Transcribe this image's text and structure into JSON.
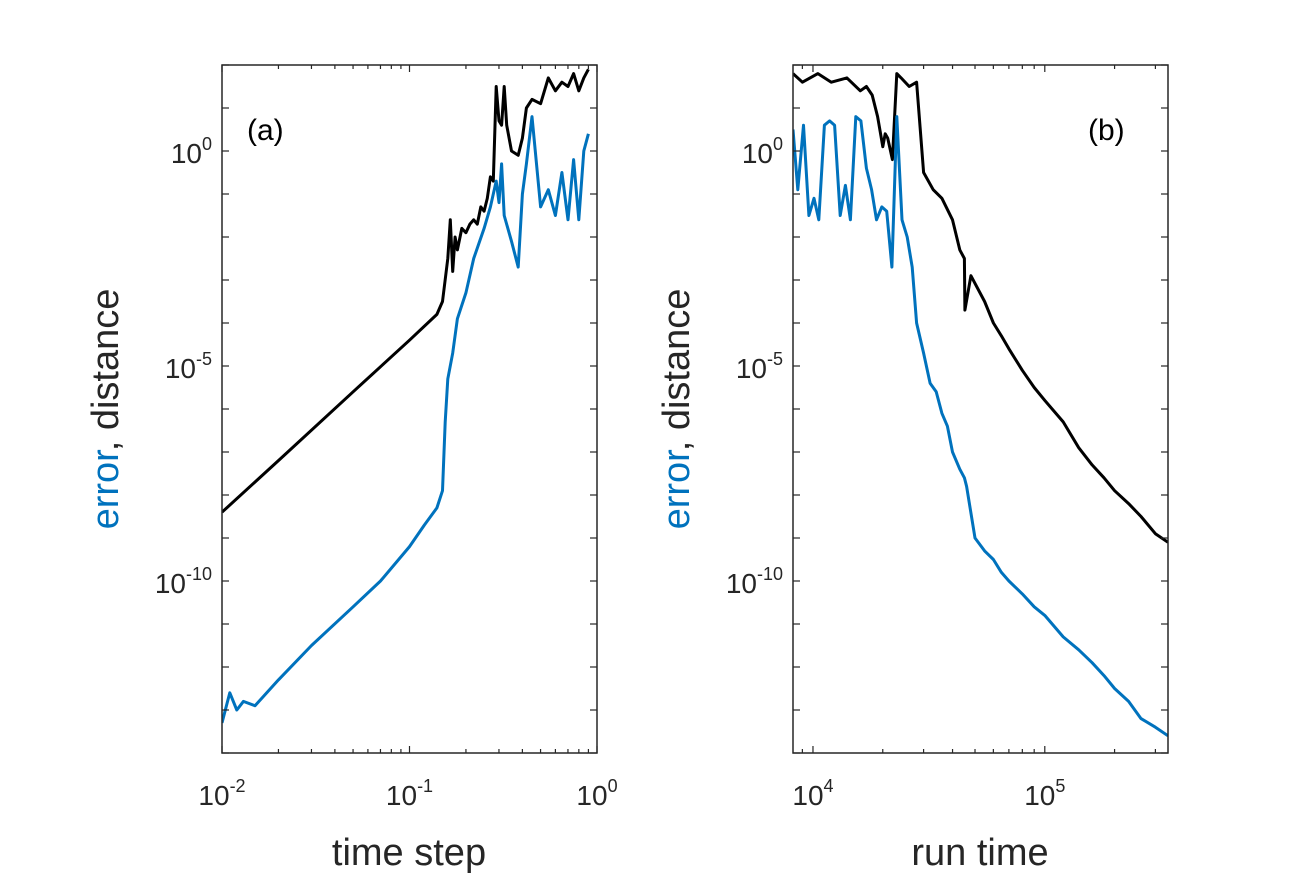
{
  "colors": {
    "error": "#0072BD",
    "distance": "#000000",
    "axis": "#262626",
    "background": "#ffffff"
  },
  "chart_data": [
    {
      "type": "line",
      "panel": "(a)",
      "xscale": "log",
      "yscale": "log",
      "xlim": [
        0.01,
        1
      ],
      "ylim_exp": [
        -14,
        2
      ],
      "xlabel": "time step",
      "ylabel_error": "error",
      "ylabel_sep": ",",
      "ylabel_distance": "distance",
      "x_ticks": [
        {
          "base": "10",
          "exp": "-2",
          "value": 0.01
        },
        {
          "base": "10",
          "exp": "-1",
          "value": 0.1
        },
        {
          "base": "10",
          "exp": "0",
          "value": 1
        }
      ],
      "y_ticks": [
        {
          "base": "10",
          "exp": "-10",
          "value_exp": -10
        },
        {
          "base": "10",
          "exp": "-5",
          "value_exp": -5
        },
        {
          "base": "10",
          "exp": "0",
          "value_exp": 0
        }
      ],
      "series": [
        {
          "name": "distance",
          "color": "#000000",
          "x": [
            0.01,
            0.02,
            0.05,
            0.1,
            0.14,
            0.15,
            0.16,
            0.165,
            0.17,
            0.175,
            0.18,
            0.19,
            0.2,
            0.21,
            0.22,
            0.23,
            0.24,
            0.25,
            0.26,
            0.27,
            0.28,
            0.29,
            0.3,
            0.31,
            0.32,
            0.33,
            0.35,
            0.38,
            0.4,
            0.42,
            0.45,
            0.5,
            0.55,
            0.6,
            0.65,
            0.7,
            0.75,
            0.8,
            0.85,
            0.9
          ],
          "log10_y": [
            -8.4,
            -7.2,
            -5.6,
            -4.4,
            -3.8,
            -3.5,
            -2.5,
            -1.6,
            -2.8,
            -2.0,
            -2.3,
            -1.8,
            -1.9,
            -1.7,
            -1.6,
            -1.7,
            -1.3,
            -1.4,
            -1.1,
            -0.6,
            -0.7,
            1.5,
            0.7,
            0.6,
            1.5,
            0.6,
            0.0,
            -0.1,
            0.3,
            1.0,
            1.2,
            1.1,
            1.7,
            1.4,
            1.6,
            1.5,
            1.8,
            1.4,
            1.7,
            1.9
          ]
        },
        {
          "name": "error",
          "color": "#0072BD",
          "x": [
            0.01,
            0.011,
            0.012,
            0.013,
            0.015,
            0.02,
            0.03,
            0.05,
            0.07,
            0.1,
            0.12,
            0.14,
            0.15,
            0.155,
            0.16,
            0.17,
            0.18,
            0.2,
            0.22,
            0.25,
            0.27,
            0.29,
            0.3,
            0.31,
            0.32,
            0.35,
            0.38,
            0.4,
            0.42,
            0.45,
            0.5,
            0.55,
            0.6,
            0.65,
            0.7,
            0.75,
            0.8,
            0.85,
            0.9
          ],
          "log10_y": [
            -13.3,
            -12.6,
            -13.0,
            -12.8,
            -12.9,
            -12.3,
            -11.5,
            -10.6,
            -10.0,
            -9.2,
            -8.7,
            -8.3,
            -7.9,
            -6.3,
            -5.3,
            -4.7,
            -3.9,
            -3.3,
            -2.5,
            -1.8,
            -1.3,
            -0.7,
            -1.2,
            -0.3,
            -1.5,
            -2.1,
            -2.7,
            -1.0,
            -0.3,
            0.8,
            -1.3,
            -0.9,
            -1.5,
            -0.5,
            -1.6,
            -0.2,
            -1.6,
            0.0,
            0.4
          ]
        }
      ]
    },
    {
      "type": "line",
      "panel": "(b)",
      "xscale": "log",
      "yscale": "log",
      "xlim": [
        8200,
        340000
      ],
      "ylim_exp": [
        -14,
        2
      ],
      "xlabel": "run time",
      "ylabel_error": "error",
      "ylabel_sep": ",",
      "ylabel_distance": "distance",
      "x_ticks": [
        {
          "base": "10",
          "exp": "4",
          "value": 10000
        },
        {
          "base": "10",
          "exp": "5",
          "value": 100000
        }
      ],
      "y_ticks": [
        {
          "base": "10",
          "exp": "-10",
          "value_exp": -10
        },
        {
          "base": "10",
          "exp": "-5",
          "value_exp": -5
        },
        {
          "base": "10",
          "exp": "0",
          "value_exp": 0
        }
      ],
      "series": [
        {
          "name": "distance",
          "color": "#000000",
          "x": [
            8200,
            9000,
            10500,
            12000,
            14000,
            16000,
            17000,
            18000,
            19000,
            20000,
            20500,
            21000,
            22000,
            23000,
            24000,
            26000,
            28000,
            30000,
            33000,
            36000,
            40000,
            43000,
            45000,
            45200,
            48000,
            55000,
            60000,
            65000,
            70000,
            80000,
            90000,
            100000,
            120000,
            140000,
            160000,
            180000,
            200000,
            230000,
            260000,
            300000,
            340000
          ],
          "log10_y": [
            1.8,
            1.6,
            1.8,
            1.6,
            1.7,
            1.4,
            1.5,
            1.3,
            0.8,
            0.1,
            0.4,
            0.3,
            -0.2,
            1.8,
            1.7,
            1.5,
            1.6,
            -0.5,
            -0.9,
            -1.1,
            -1.6,
            -2.3,
            -2.5,
            -3.7,
            -2.9,
            -3.5,
            -4.0,
            -4.3,
            -4.6,
            -5.1,
            -5.5,
            -5.8,
            -6.3,
            -6.9,
            -7.3,
            -7.6,
            -7.9,
            -8.2,
            -8.5,
            -8.9,
            -9.1
          ]
        },
        {
          "name": "error",
          "color": "#0072BD",
          "x": [
            8200,
            8600,
            9100,
            9600,
            10100,
            10600,
            11200,
            11800,
            12400,
            13100,
            13800,
            14500,
            15300,
            16100,
            17000,
            17900,
            18800,
            19800,
            20800,
            21900,
            23000,
            24200,
            25500,
            26800,
            28000,
            30000,
            32000,
            34000,
            36000,
            38000,
            40000,
            43000,
            45000,
            46000,
            50000,
            55000,
            60000,
            65000,
            70000,
            80000,
            90000,
            100000,
            120000,
            140000,
            160000,
            180000,
            200000,
            230000,
            260000,
            300000,
            340000
          ],
          "log10_y": [
            0.5,
            -0.9,
            0.6,
            -1.5,
            -1.1,
            -1.6,
            0.6,
            0.7,
            0.6,
            -1.5,
            -0.8,
            -1.6,
            0.8,
            0.7,
            -0.4,
            -0.9,
            -1.6,
            -1.3,
            -1.4,
            -2.7,
            0.8,
            -1.6,
            -2.0,
            -2.7,
            -4.0,
            -4.7,
            -5.4,
            -5.6,
            -6.1,
            -6.4,
            -7.0,
            -7.4,
            -7.6,
            -7.8,
            -9.0,
            -9.3,
            -9.5,
            -9.8,
            -10.0,
            -10.3,
            -10.6,
            -10.8,
            -11.3,
            -11.6,
            -11.9,
            -12.2,
            -12.5,
            -12.8,
            -13.2,
            -13.4,
            -13.6
          ]
        }
      ]
    }
  ]
}
